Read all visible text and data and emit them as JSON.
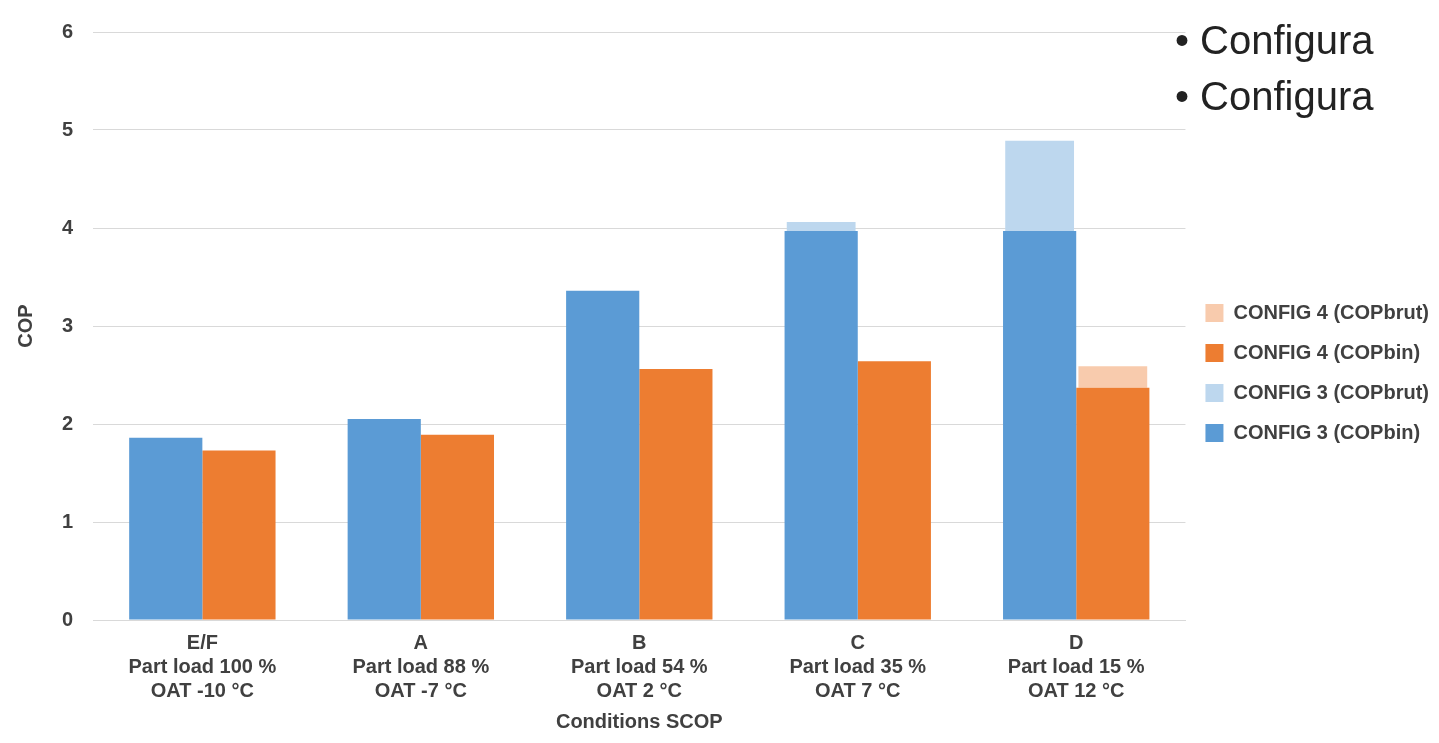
{
  "chart_data": {
    "type": "bar",
    "xlabel": "Conditions SCOP",
    "ylabel": "COP",
    "categories": [
      "E/F\nPart load 100 %\nOAT -10 °C",
      "A\nPart load 88 %\nOAT -7 °C",
      "B\nPart load 54 %\nOAT 2 °C",
      "C\nPart load 35 %\nOAT 7 °C",
      "D\nPart load 15 %\nOAT 12 °C"
    ],
    "series": [
      {
        "name": "CONFIG 3 (COPbin)",
        "color": "#5b9bd5",
        "values": [
          1.86,
          2.05,
          3.36,
          3.97,
          3.97
        ]
      },
      {
        "name": "CONFIG 3 (COPbrut)",
        "color": "#bdd7ee",
        "base": [
          null,
          null,
          null,
          3.97,
          3.97
        ],
        "values": [
          null,
          null,
          null,
          0.09,
          0.92
        ]
      },
      {
        "name": "CONFIG 4 (COPbin)",
        "color": "#ed7d31",
        "values": [
          1.73,
          1.89,
          2.56,
          2.64,
          2.37
        ]
      },
      {
        "name": "CONFIG 4 (COPbrut)",
        "color": "#f8cbad",
        "base": [
          null,
          null,
          null,
          null,
          2.37
        ],
        "values": [
          null,
          null,
          null,
          null,
          0.22
        ]
      }
    ],
    "ylim": [
      0,
      6
    ],
    "yticks": [
      0,
      1,
      2,
      3,
      4,
      5,
      6
    ],
    "grid": "y",
    "legend": "right",
    "annotations": [
      "• Configura",
      "• Configura"
    ]
  }
}
